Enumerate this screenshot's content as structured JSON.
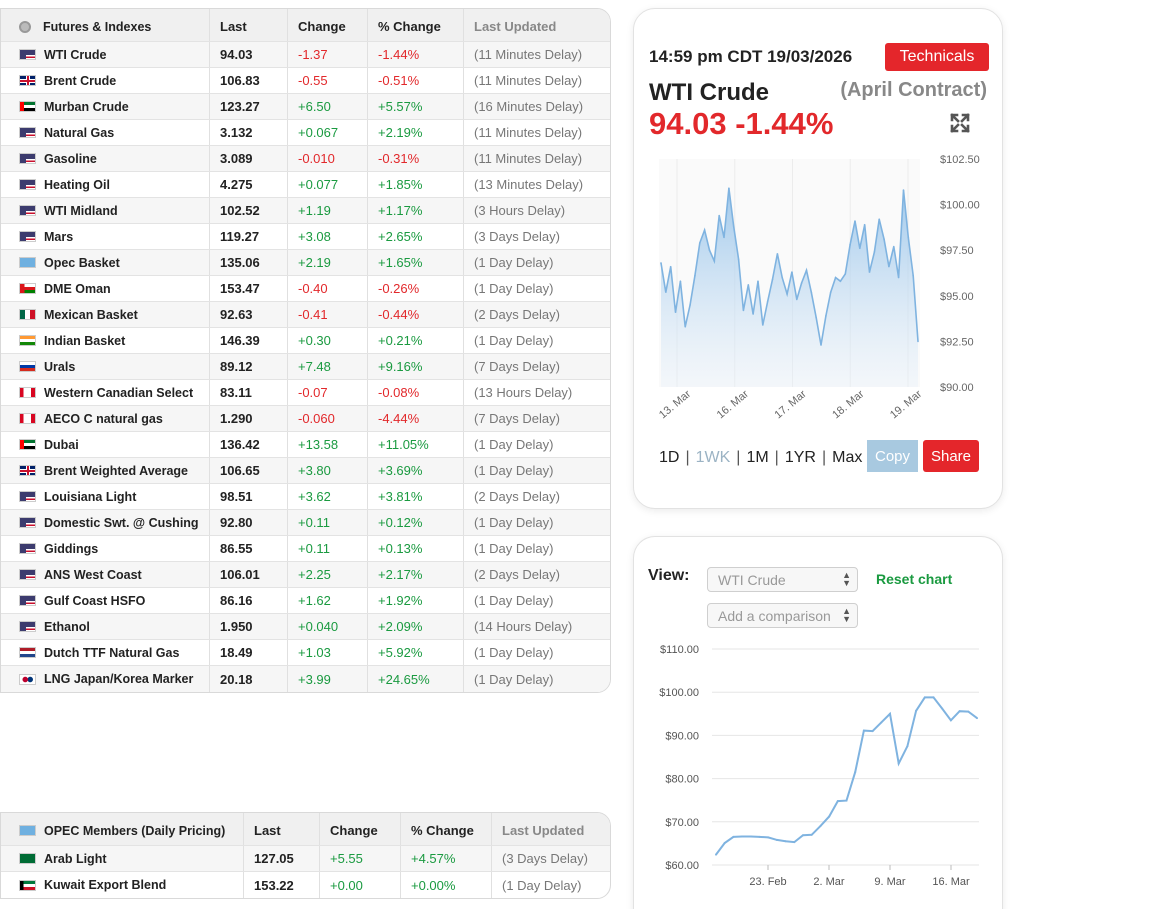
{
  "futures": {
    "headers": {
      "name": "Futures & Indexes",
      "last": "Last",
      "change": "Change",
      "pct": "% Change",
      "updated": "Last Updated"
    },
    "rows": [
      {
        "flag": "us",
        "name": "WTI Crude",
        "last": "94.03",
        "change": "-1.37",
        "pct": "-1.44%",
        "updated": "(11 Minutes Delay)",
        "dir": "neg"
      },
      {
        "flag": "uk",
        "name": "Brent Crude",
        "last": "106.83",
        "change": "-0.55",
        "pct": "-0.51%",
        "updated": "(11 Minutes Delay)",
        "dir": "neg"
      },
      {
        "flag": "ae",
        "name": "Murban Crude",
        "last": "123.27",
        "change": "+6.50",
        "pct": "+5.57%",
        "updated": "(16 Minutes Delay)",
        "dir": "pos"
      },
      {
        "flag": "us",
        "name": "Natural Gas",
        "last": "3.132",
        "change": "+0.067",
        "pct": "+2.19%",
        "updated": "(11 Minutes Delay)",
        "dir": "pos"
      },
      {
        "flag": "us",
        "name": "Gasoline",
        "last": "3.089",
        "change": "-0.010",
        "pct": "-0.31%",
        "updated": "(11 Minutes Delay)",
        "dir": "neg"
      },
      {
        "flag": "us",
        "name": "Heating Oil",
        "last": "4.275",
        "change": "+0.077",
        "pct": "+1.85%",
        "updated": "(13 Minutes Delay)",
        "dir": "pos"
      },
      {
        "flag": "us",
        "name": "WTI Midland",
        "last": "102.52",
        "change": "+1.19",
        "pct": "+1.17%",
        "updated": "(3 Hours Delay)",
        "dir": "pos"
      },
      {
        "flag": "us",
        "name": "Mars",
        "last": "119.27",
        "change": "+3.08",
        "pct": "+2.65%",
        "updated": "(3 Days Delay)",
        "dir": "pos"
      },
      {
        "flag": "opec",
        "name": "Opec Basket",
        "last": "135.06",
        "change": "+2.19",
        "pct": "+1.65%",
        "updated": "(1 Day Delay)",
        "dir": "pos"
      },
      {
        "flag": "om",
        "name": "DME Oman",
        "last": "153.47",
        "change": "-0.40",
        "pct": "-0.26%",
        "updated": "(1 Day Delay)",
        "dir": "neg"
      },
      {
        "flag": "mx",
        "name": "Mexican Basket",
        "last": "92.63",
        "change": "-0.41",
        "pct": "-0.44%",
        "updated": "(2 Days Delay)",
        "dir": "neg"
      },
      {
        "flag": "in",
        "name": "Indian Basket",
        "last": "146.39",
        "change": "+0.30",
        "pct": "+0.21%",
        "updated": "(1 Day Delay)",
        "dir": "pos"
      },
      {
        "flag": "ru",
        "name": "Urals",
        "last": "89.12",
        "change": "+7.48",
        "pct": "+9.16%",
        "updated": "(7 Days Delay)",
        "dir": "pos"
      },
      {
        "flag": "ca",
        "name": "Western Canadian Select",
        "last": "83.11",
        "change": "-0.07",
        "pct": "-0.08%",
        "updated": "(13 Hours Delay)",
        "dir": "neg"
      },
      {
        "flag": "ca",
        "name": "AECO C natural gas",
        "last": "1.290",
        "change": "-0.060",
        "pct": "-4.44%",
        "updated": "(7 Days Delay)",
        "dir": "neg"
      },
      {
        "flag": "ae",
        "name": "Dubai",
        "last": "136.42",
        "change": "+13.58",
        "pct": "+11.05%",
        "updated": "(1 Day Delay)",
        "dir": "pos"
      },
      {
        "flag": "uk",
        "name": "Brent Weighted Average",
        "last": "106.65",
        "change": "+3.80",
        "pct": "+3.69%",
        "updated": "(1 Day Delay)",
        "dir": "pos"
      },
      {
        "flag": "us",
        "name": "Louisiana Light",
        "last": "98.51",
        "change": "+3.62",
        "pct": "+3.81%",
        "updated": "(2 Days Delay)",
        "dir": "pos"
      },
      {
        "flag": "us",
        "name": "Domestic Swt. @ Cushing",
        "last": "92.80",
        "change": "+0.11",
        "pct": "+0.12%",
        "updated": "(1 Day Delay)",
        "dir": "pos"
      },
      {
        "flag": "us",
        "name": "Giddings",
        "last": "86.55",
        "change": "+0.11",
        "pct": "+0.13%",
        "updated": "(1 Day Delay)",
        "dir": "pos"
      },
      {
        "flag": "us",
        "name": "ANS West Coast",
        "last": "106.01",
        "change": "+2.25",
        "pct": "+2.17%",
        "updated": "(2 Days Delay)",
        "dir": "pos"
      },
      {
        "flag": "us",
        "name": "Gulf Coast HSFO",
        "last": "86.16",
        "change": "+1.62",
        "pct": "+1.92%",
        "updated": "(1 Day Delay)",
        "dir": "pos"
      },
      {
        "flag": "us",
        "name": "Ethanol",
        "last": "1.950",
        "change": "+0.040",
        "pct": "+2.09%",
        "updated": "(14 Hours Delay)",
        "dir": "pos"
      },
      {
        "flag": "nl",
        "name": "Dutch TTF Natural Gas",
        "last": "18.49",
        "change": "+1.03",
        "pct": "+5.92%",
        "updated": "(1 Day Delay)",
        "dir": "pos"
      },
      {
        "flag": "jpkr",
        "name": "LNG Japan/Korea Marker",
        "last": "20.18",
        "change": "+3.99",
        "pct": "+24.65%",
        "updated": "(1 Day Delay)",
        "dir": "pos"
      }
    ]
  },
  "opec": {
    "headers": {
      "name": "OPEC Members (Daily Pricing)",
      "last": "Last",
      "change": "Change",
      "pct": "% Change",
      "updated": "Last Updated"
    },
    "rows": [
      {
        "flag": "sa",
        "name": "Arab Light",
        "last": "127.05",
        "change": "+5.55",
        "pct": "+4.57%",
        "updated": "(3 Days Delay)",
        "dir": "pos"
      },
      {
        "flag": "kw",
        "name": "Kuwait Export Blend",
        "last": "153.22",
        "change": "+0.00",
        "pct": "+0.00%",
        "updated": "(1 Day Delay)",
        "dir": "pos"
      }
    ]
  },
  "chart_card": {
    "timestamp": "14:59 pm CDT 19/03/2026",
    "technicals_label": "Technicals",
    "title": "WTI Crude",
    "contract": "(April Contract)",
    "price_line": "94.03 -1.44%",
    "ranges": [
      "1D",
      "1WK",
      "1M",
      "1YR",
      "Max"
    ],
    "active_range": "1WK",
    "copy_label": "Copy",
    "share_label": "Share"
  },
  "compare_card": {
    "view_label": "View:",
    "view_value": "WTI Crude",
    "compare_placeholder": "Add a comparison",
    "reset_label": "Reset chart"
  },
  "chart_data": [
    {
      "type": "area",
      "title": "",
      "x_tick_labels": [
        "13. Mar",
        "16. Mar",
        "17. Mar",
        "18. Mar",
        "19. Mar"
      ],
      "y_tick_labels": [
        "$90.00",
        "$92.50",
        "$95.00",
        "$97.50",
        "$100.00",
        "$102.50"
      ],
      "ylim": [
        90,
        102.5
      ],
      "color": "#7fb3e0",
      "series": [
        {
          "values": [
            96.8,
            95.2,
            96.6,
            94.1,
            95.8,
            93.3,
            94.5,
            96.1,
            97.9,
            98.6,
            97.5,
            96.9,
            99.4,
            98.2,
            100.9,
            98.8,
            97.0,
            94.2,
            95.6,
            94.0,
            95.8,
            93.4,
            94.7,
            95.9,
            97.3,
            96.0,
            95.1,
            96.3,
            94.8,
            95.7,
            96.4,
            95.2,
            93.8,
            92.3,
            93.9,
            95.2,
            96.0,
            95.8,
            96.2,
            97.8,
            99.1,
            97.6,
            98.9,
            96.3,
            97.4,
            99.2,
            98.1,
            96.6,
            97.7,
            96.0,
            100.8,
            98.2,
            96.1,
            92.5
          ]
        }
      ]
    },
    {
      "type": "line",
      "title": "",
      "x_tick_labels": [
        "23. Feb",
        "2. Mar",
        "9. Mar",
        "16. Mar"
      ],
      "y_tick_labels": [
        "$60.00",
        "$70.00",
        "$80.00",
        "$90.00",
        "$100.00",
        "$110.00"
      ],
      "ylim": [
        60,
        110
      ],
      "color": "#7fb3e0",
      "series": [
        {
          "values": [
            62.4,
            65.1,
            66.5,
            66.6,
            66.6,
            66.5,
            66.4,
            65.8,
            65.5,
            65.3,
            66.9,
            67.0,
            69.0,
            71.2,
            74.8,
            74.9,
            81.5,
            91.1,
            91.0,
            93.0,
            95.0,
            83.5,
            87.5,
            95.7,
            98.8,
            98.8,
            96.2,
            93.5,
            95.6,
            95.5,
            94.0
          ]
        }
      ]
    }
  ]
}
